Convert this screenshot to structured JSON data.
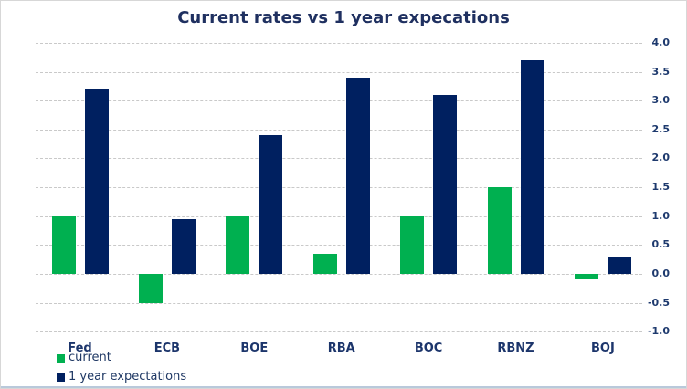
{
  "chart_data": {
    "type": "bar",
    "title": "Current rates vs 1 year expecations",
    "categories": [
      "Fed",
      "ECB",
      "BOE",
      "RBA",
      "BOC",
      "RBNZ",
      "BOJ"
    ],
    "series": [
      {
        "name": "current",
        "color": "#00b050",
        "values": [
          1.0,
          -0.5,
          1.0,
          0.35,
          1.0,
          1.5,
          -0.1
        ]
      },
      {
        "name": "1 year expectations",
        "color": "#002060",
        "values": [
          3.2,
          0.95,
          2.4,
          3.4,
          3.1,
          3.7,
          0.3
        ]
      }
    ],
    "xlabel": "",
    "ylabel": "",
    "ylim": [
      -1.0,
      4.0
    ],
    "ytick_step": 0.5,
    "yticks": [
      "4.0",
      "3.5",
      "3.0",
      "2.5",
      "2.0",
      "1.5",
      "1.0",
      "0.5",
      "0.0",
      "-0.5",
      "-1.0"
    ],
    "ytick_values": [
      4.0,
      3.5,
      3.0,
      2.5,
      2.0,
      1.5,
      1.0,
      0.5,
      0.0,
      -0.5,
      -1.0
    ],
    "axis_side": "right",
    "grid": "dashed",
    "legend_position": "bottom-left"
  },
  "legend": {
    "items": [
      {
        "label": "current",
        "color": "#00b050"
      },
      {
        "label": "1 year expectations",
        "color": "#002060"
      }
    ]
  },
  "colors": {
    "current_bar": "#00b050",
    "expectations_bar": "#002060",
    "title_text": "#1f3060",
    "axis_text": "#1e3a6e",
    "category_text": "#1c356b",
    "gridline": "#c9c9c9",
    "frame_border": "#d7d7d7",
    "bottom_accent": "#b9c9db",
    "background": "#ffffff"
  }
}
